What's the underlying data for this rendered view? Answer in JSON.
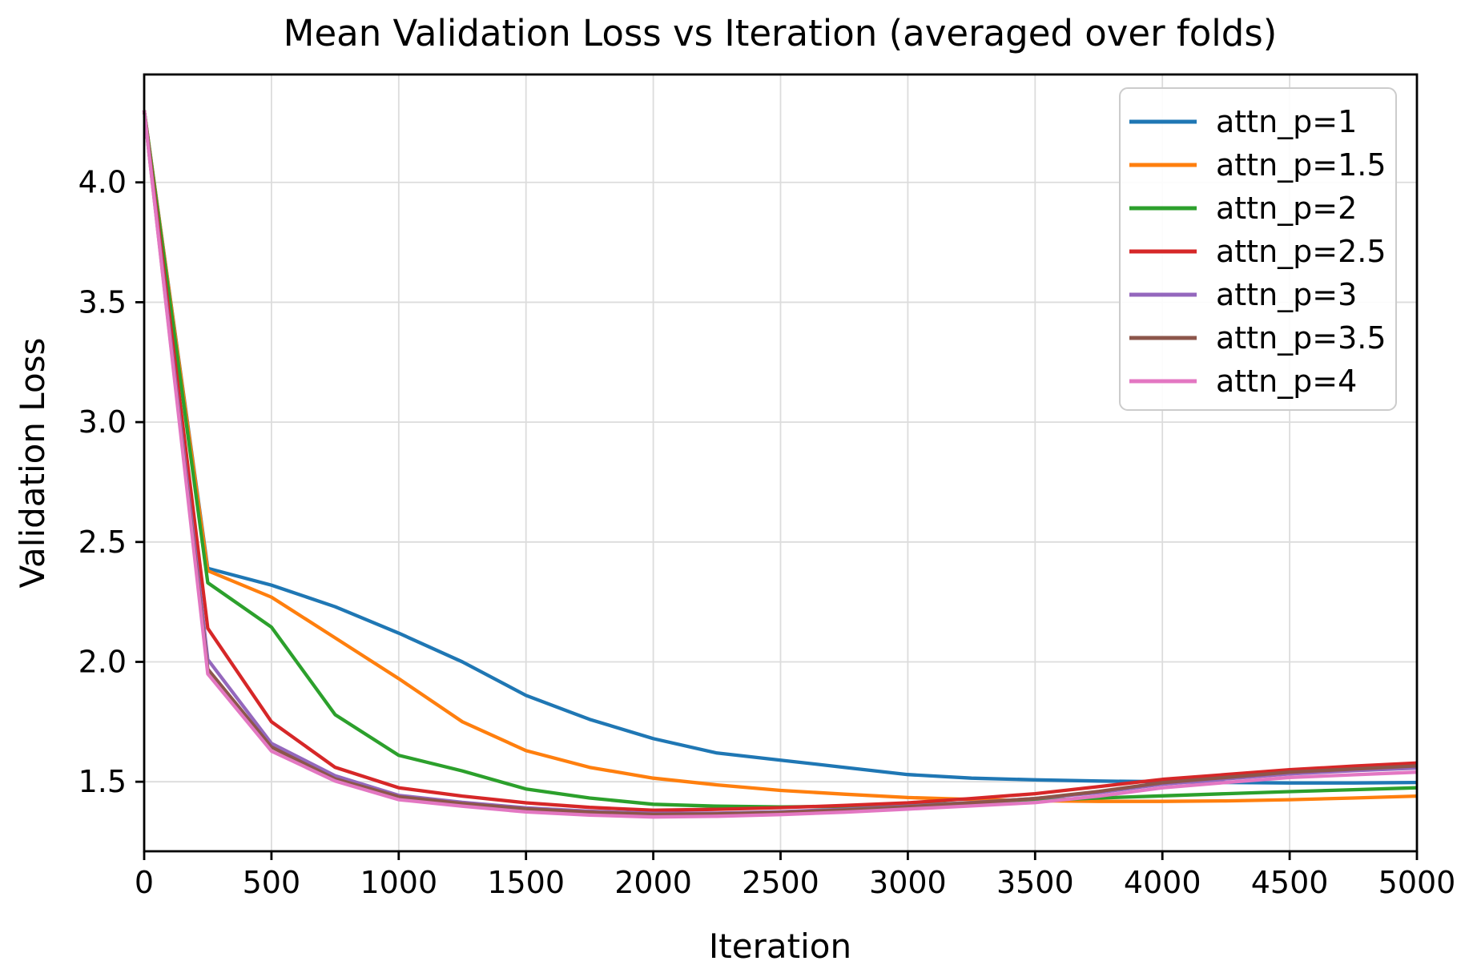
{
  "chart_data": {
    "type": "line",
    "title": "Mean Validation Loss vs Iteration (averaged over folds)",
    "xlabel": "Iteration",
    "ylabel": "Validation Loss",
    "x": [
      0,
      250,
      500,
      750,
      1000,
      1250,
      1500,
      1750,
      2000,
      2250,
      2500,
      2750,
      3000,
      3250,
      3500,
      3750,
      4000,
      4250,
      4500,
      4750,
      5000
    ],
    "series": [
      {
        "name": "attn_p=1",
        "color": "#1f77b4",
        "values": [
          4.3,
          2.39,
          2.32,
          2.23,
          2.12,
          2.0,
          1.86,
          1.76,
          1.68,
          1.62,
          1.59,
          1.56,
          1.53,
          1.515,
          1.508,
          1.503,
          1.5,
          1.497,
          1.495,
          1.495,
          1.497
        ]
      },
      {
        "name": "attn_p=1.5",
        "color": "#ff7f0e",
        "values": [
          4.3,
          2.38,
          2.27,
          2.1,
          1.93,
          1.75,
          1.63,
          1.56,
          1.515,
          1.487,
          1.464,
          1.448,
          1.434,
          1.426,
          1.421,
          1.418,
          1.418,
          1.42,
          1.425,
          1.432,
          1.44
        ]
      },
      {
        "name": "attn_p=2",
        "color": "#2ca02c",
        "values": [
          4.3,
          2.33,
          2.145,
          1.78,
          1.61,
          1.545,
          1.47,
          1.432,
          1.406,
          1.398,
          1.395,
          1.397,
          1.403,
          1.412,
          1.422,
          1.432,
          1.441,
          1.45,
          1.459,
          1.467,
          1.475
        ]
      },
      {
        "name": "attn_p=2.5",
        "color": "#d62728",
        "values": [
          4.3,
          2.14,
          1.75,
          1.56,
          1.475,
          1.44,
          1.412,
          1.393,
          1.381,
          1.385,
          1.392,
          1.401,
          1.412,
          1.43,
          1.45,
          1.48,
          1.51,
          1.53,
          1.55,
          1.565,
          1.578
        ]
      },
      {
        "name": "attn_p=3",
        "color": "#9467bd",
        "values": [
          4.3,
          2.01,
          1.66,
          1.525,
          1.443,
          1.414,
          1.391,
          1.377,
          1.368,
          1.369,
          1.375,
          1.385,
          1.398,
          1.413,
          1.43,
          1.455,
          1.49,
          1.512,
          1.533,
          1.546,
          1.557
        ]
      },
      {
        "name": "attn_p=3.5",
        "color": "#8c564b",
        "values": [
          4.3,
          1.97,
          1.645,
          1.512,
          1.437,
          1.409,
          1.387,
          1.373,
          1.364,
          1.366,
          1.372,
          1.382,
          1.396,
          1.412,
          1.43,
          1.46,
          1.496,
          1.518,
          1.54,
          1.553,
          1.566
        ]
      },
      {
        "name": "attn_p=4",
        "color": "#e377c2",
        "values": [
          4.3,
          1.95,
          1.628,
          1.503,
          1.425,
          1.398,
          1.374,
          1.361,
          1.353,
          1.356,
          1.363,
          1.373,
          1.386,
          1.399,
          1.413,
          1.44,
          1.475,
          1.497,
          1.518,
          1.529,
          1.54
        ]
      }
    ],
    "xlim": [
      0,
      5000
    ],
    "ylim": [
      1.21,
      4.45
    ],
    "xticks": [
      0,
      500,
      1000,
      1500,
      2000,
      2500,
      3000,
      3500,
      4000,
      4500,
      5000
    ],
    "yticks": [
      1.5,
      2.0,
      2.5,
      3.0,
      3.5,
      4.0
    ],
    "grid": true,
    "grid_color": "#dcdcdc",
    "axis_color": "#000000",
    "background_color": "#ffffff",
    "legend_position": "upper right",
    "line_width": 4.3
  }
}
